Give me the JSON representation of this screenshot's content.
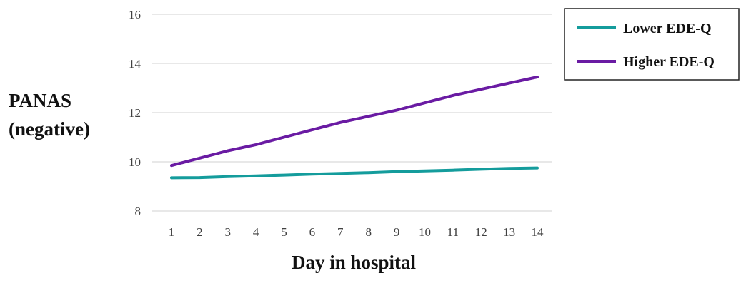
{
  "chart_data": {
    "type": "line",
    "title": "",
    "xlabel": "Day in hospital",
    "ylabel_lines": [
      "PANAS",
      "(negative)"
    ],
    "x": [
      1,
      2,
      3,
      4,
      5,
      6,
      7,
      8,
      9,
      10,
      11,
      12,
      13,
      14
    ],
    "xlim": [
      1,
      14
    ],
    "ylim": [
      8,
      16
    ],
    "yticks": [
      8,
      10,
      12,
      14,
      16
    ],
    "grid": true,
    "legend_position": "top-right",
    "series": [
      {
        "name": "Lower EDE-Q",
        "color": "#149c9c",
        "values": [
          9.35,
          9.36,
          9.4,
          9.43,
          9.46,
          9.5,
          9.53,
          9.56,
          9.6,
          9.63,
          9.66,
          9.7,
          9.73,
          9.75
        ]
      },
      {
        "name": "Higher EDE-Q",
        "color": "#6a1ba3",
        "values": [
          9.85,
          10.15,
          10.45,
          10.7,
          11.0,
          11.3,
          11.6,
          11.85,
          12.1,
          12.4,
          12.7,
          12.95,
          13.2,
          13.45
        ]
      }
    ]
  }
}
